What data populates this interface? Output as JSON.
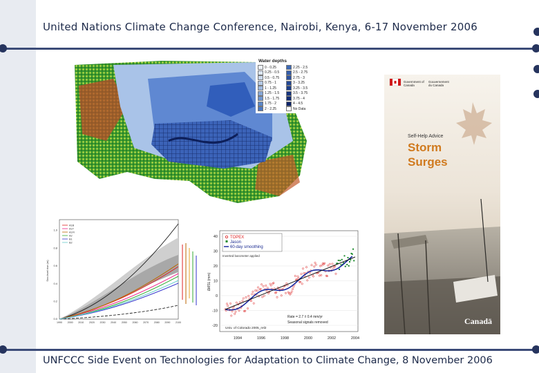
{
  "slide": {
    "title": "United Nations Climate Change Conference, Nairobi, Kenya, 6-17 November 2006",
    "footer": "UNFCCC Side Event on Technologies for Adaptation to Climate Change, 8 November 2006"
  },
  "map": {
    "legend_title": "Water depths",
    "legend_left": [
      "0 - 0.25",
      "0.25 - 0.5",
      "0.5 - 0.75",
      "0.75 - 1",
      "1 - 1.25",
      "1.25 - 1.5",
      "1.5 - 1.75",
      "1.75 - 2",
      "2 - 2.25"
    ],
    "legend_right": [
      "2.25 - 2.5",
      "2.5 - 2.75",
      "2.75 - 3",
      "3 - 3.25",
      "3.25 - 3.5",
      "3.5 - 3.75",
      "3.75 - 4",
      "4 - 4.5",
      "No Data"
    ],
    "colors": {
      "shallow": "#c9d8ec",
      "deep": "#1a3c9a",
      "land_green": "#2f8c2a",
      "land_red": "#b23b2a"
    }
  },
  "chart_projection": {
    "series_labels": [
      "A1B",
      "A1T",
      "A1FI",
      "A2",
      "B1",
      "B2"
    ],
    "xticks": [
      "1990",
      "2000",
      "2010",
      "2020",
      "2030",
      "2040",
      "2050",
      "2060",
      "2070",
      "2080",
      "2090",
      "2100"
    ],
    "yticks": [
      "0.0",
      "0.2",
      "0.4",
      "0.6",
      "0.8",
      "1.0"
    ],
    "ylabel": "Sea level rise (m)"
  },
  "chart_sea_level": {
    "legend": [
      "TOPEX",
      "Jason",
      "60-day smoothing"
    ],
    "inverted_barometer": "Inverted barometer applied",
    "ylabel": "ΔMSL (mm)",
    "yticks": [
      "40",
      "30",
      "20",
      "10",
      "0",
      "-10",
      "-20"
    ],
    "xticks": [
      "1994",
      "1996",
      "1998",
      "2000",
      "2002",
      "2004"
    ],
    "rate_text": "Rate = 2.7 ± 0.4 mm/yr",
    "seasonal_text": "Seasonal signals removed",
    "source_text": "Univ. of Colorado 2005_rel2"
  },
  "brochure": {
    "gov_en": "Government of Canada",
    "gov_fr": "Gouvernement du Canada",
    "subtitle": "Self-Help Advice",
    "title_line1": "Storm",
    "title_line2": "Surges",
    "wordmark": "Canadä"
  }
}
